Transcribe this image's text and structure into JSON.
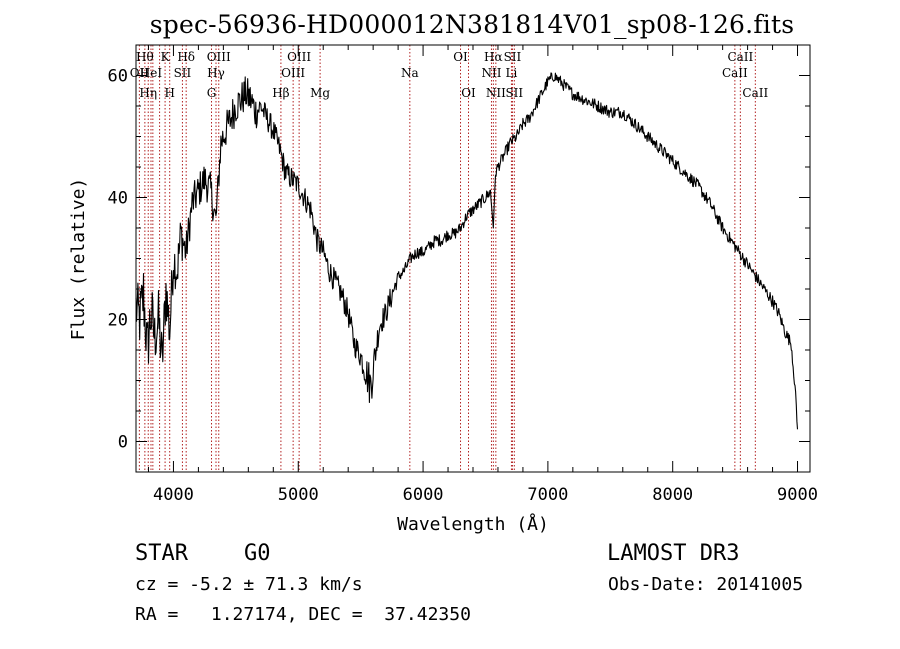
{
  "chart_data": {
    "type": "line",
    "title": "spec-56936-HD000012N381814V01_sp08-126.fits",
    "xlabel": "Wavelength (Å)",
    "ylabel": "Flux (relative)",
    "xlim": [
      3700,
      9100
    ],
    "ylim": [
      -5,
      65
    ],
    "xticks": [
      4000,
      5000,
      6000,
      7000,
      8000,
      9000
    ],
    "yticks": [
      0,
      20,
      40,
      60
    ],
    "series": [
      {
        "name": "flux",
        "x": [
          3700,
          3730,
          3760,
          3790,
          3820,
          3850,
          3880,
          3910,
          3940,
          3970,
          4000,
          4030,
          4060,
          4100,
          4150,
          4200,
          4250,
          4300,
          4340,
          4380,
          4420,
          4460,
          4500,
          4540,
          4580,
          4620,
          4660,
          4700,
          4750,
          4800,
          4850,
          4900,
          4950,
          5000,
          5050,
          5100,
          5150,
          5200,
          5250,
          5300,
          5350,
          5400,
          5450,
          5500,
          5550,
          5580,
          5600,
          5650,
          5700,
          5750,
          5800,
          5850,
          5900,
          5950,
          6000,
          6050,
          6100,
          6150,
          6200,
          6250,
          6300,
          6350,
          6400,
          6450,
          6500,
          6540,
          6563,
          6580,
          6600,
          6650,
          6700,
          6750,
          6800,
          6850,
          6900,
          6950,
          7000,
          7050,
          7100,
          7150,
          7200,
          7300,
          7400,
          7500,
          7600,
          7700,
          7800,
          7900,
          8000,
          8100,
          8200,
          8300,
          8400,
          8500,
          8600,
          8700,
          8800,
          8850,
          8900,
          8950,
          8980,
          9000
        ],
        "y": [
          22,
          20,
          24,
          15,
          21,
          17,
          20,
          13,
          25,
          18,
          30,
          28,
          34,
          31,
          39,
          41,
          43,
          41,
          36,
          49,
          51,
          53,
          55,
          56,
          57,
          56,
          54,
          55,
          53,
          51,
          48,
          44,
          43,
          42,
          40,
          38,
          33,
          31,
          28,
          26,
          24,
          21,
          16,
          14,
          11,
          9,
          12,
          19,
          21,
          24,
          27,
          28,
          30,
          31,
          31,
          32,
          33,
          33,
          34,
          34,
          35,
          37,
          38,
          39,
          40,
          41,
          35,
          44,
          45,
          47,
          49,
          50,
          52,
          53,
          55,
          57,
          59,
          60,
          59,
          58,
          57,
          56,
          55,
          54,
          54,
          52,
          50,
          48,
          46,
          44,
          42,
          39,
          35,
          32,
          29,
          26,
          23,
          21,
          18,
          16,
          9,
          2
        ],
        "noise": [
          5,
          5,
          6,
          5,
          6,
          5,
          5,
          5,
          5,
          5,
          4,
          4,
          4,
          3,
          3,
          3,
          3,
          3,
          3,
          3,
          3,
          3,
          3,
          3,
          3,
          3,
          3,
          2,
          2,
          2,
          2,
          2,
          2,
          2,
          2,
          2,
          2,
          2,
          2,
          2,
          2,
          2,
          2,
          2,
          3,
          4,
          3,
          2,
          2,
          2,
          1,
          1,
          1,
          1,
          1,
          1,
          1,
          1,
          1,
          1,
          1,
          1,
          1,
          1,
          1,
          1,
          0,
          1,
          1,
          1,
          1,
          1,
          1,
          1,
          1,
          1,
          1,
          1,
          1,
          1,
          1,
          1,
          1,
          1,
          1,
          1,
          1,
          1,
          1,
          1,
          1,
          1,
          1,
          1,
          1,
          1,
          1,
          1,
          1,
          1,
          1,
          1
        ]
      }
    ],
    "lines": [
      {
        "wave": 3727,
        "label": "OII",
        "row": 1
      },
      {
        "wave": 3771,
        "label": "Hθ",
        "row": 0
      },
      {
        "wave": 3798,
        "label": "Hη",
        "row": 2
      },
      {
        "wave": 3820,
        "label": "HeI",
        "row": 1
      },
      {
        "wave": 3835,
        "label": "",
        "row": 0
      },
      {
        "wave": 3889,
        "label": "",
        "row": 0
      },
      {
        "wave": 3933,
        "label": "K",
        "row": 0
      },
      {
        "wave": 3970,
        "label": "H",
        "row": 2
      },
      {
        "wave": 4072,
        "label": "SII",
        "row": 1
      },
      {
        "wave": 4102,
        "label": "Hδ",
        "row": 0
      },
      {
        "wave": 4305,
        "label": "G",
        "row": 2
      },
      {
        "wave": 4341,
        "label": "Hγ",
        "row": 1
      },
      {
        "wave": 4363,
        "label": "OIII",
        "row": 0
      },
      {
        "wave": 4861,
        "label": "Hβ",
        "row": 2
      },
      {
        "wave": 4959,
        "label": "OIII",
        "row": 1
      },
      {
        "wave": 5007,
        "label": "OIII",
        "row": 0
      },
      {
        "wave": 5175,
        "label": "Mg",
        "row": 2
      },
      {
        "wave": 5894,
        "label": "Na",
        "row": 1
      },
      {
        "wave": 6300,
        "label": "OI",
        "row": 0
      },
      {
        "wave": 6364,
        "label": "OI",
        "row": 2
      },
      {
        "wave": 6548,
        "label": "NII",
        "row": 1
      },
      {
        "wave": 6563,
        "label": "Hα",
        "row": 0
      },
      {
        "wave": 6583,
        "label": "NII",
        "row": 2
      },
      {
        "wave": 6708,
        "label": "Li",
        "row": 1
      },
      {
        "wave": 6716,
        "label": "SII",
        "row": 0
      },
      {
        "wave": 6731,
        "label": "SII",
        "row": 2
      },
      {
        "wave": 8498,
        "label": "CaII",
        "row": 1
      },
      {
        "wave": 8542,
        "label": "CaII",
        "row": 0
      },
      {
        "wave": 8662,
        "label": "CaII",
        "row": 2
      }
    ],
    "line_color": "#b22222",
    "curve_color": "#000000"
  },
  "info": {
    "class": "STAR",
    "subclass": "G0",
    "cz": "cz = -5.2 ± 71.3 km/s",
    "coords": "RA =   1.27174, DEC =  37.42350",
    "survey": "LAMOST DR3",
    "obsdate": "Obs-Date: 20141005"
  }
}
